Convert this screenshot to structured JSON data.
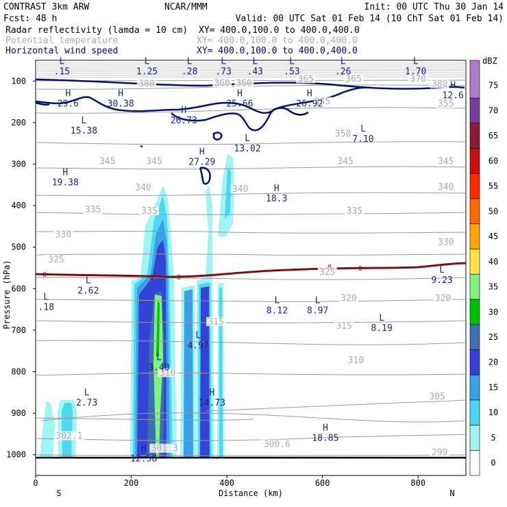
{
  "header": {
    "model": "CONTRAST  3km ARW",
    "center": "NCAR/MMM",
    "init": "Init: 00 UTC Thu 30 Jan 14",
    "fcst": "Fcst:   48 h",
    "valid": "Valid: 00 UTC Sat 01 Feb 14 (10 ChT Sat 01 Feb 14)",
    "fields": [
      {
        "name": "Radar reflectivity (lamda = 10 cm)",
        "xy": "XY= 400.0,100.0 to 400.0,400.0",
        "color": "#000000"
      },
      {
        "name": "Potential temperature",
        "xy": "XY= 400.0,100.0 to 400.0,400.0",
        "color": "#aaaaaa"
      },
      {
        "name": "Horizontal wind speed",
        "xy": "XY= 400.0,100.0 to 400.0,400.0",
        "color": "#000080"
      }
    ]
  },
  "chart_data": {
    "type": "cross-section",
    "xlabel": "Distance (km)",
    "ylabel": "Pressure (hPa)",
    "x_ticks": [
      "0",
      "200",
      "400",
      "600",
      "800"
    ],
    "x_tick_values": [
      0,
      200,
      400,
      600,
      800
    ],
    "xlim": [
      0,
      900
    ],
    "y_ticks": [
      "100",
      "200",
      "300",
      "400",
      "500",
      "600",
      "700",
      "800",
      "900",
      "1000"
    ],
    "y_tick_values": [
      100,
      200,
      300,
      400,
      500,
      600,
      700,
      800,
      900,
      1000
    ],
    "ylim": [
      50,
      1050
    ],
    "end_labels": {
      "left": "S",
      "right": "N"
    },
    "colorbar": {
      "unit": "dBZ",
      "levels": [
        "0",
        "5",
        "10",
        "15",
        "20",
        "25",
        "30",
        "35",
        "40",
        "45",
        "50",
        "55",
        "60",
        "65",
        "70",
        "75"
      ],
      "colors": [
        "#ffffff",
        "#9ff4f4",
        "#4fd6f0",
        "#3ba0e8",
        "#3344d6",
        "#3c6fb0",
        "#00c000",
        "#7ff27f",
        "#ffe14a",
        "#ffa500",
        "#ff6a00",
        "#ff2a00",
        "#c81010",
        "#8b1c3a",
        "#7a3a9a",
        "#b27ac6"
      ]
    },
    "theta_contours": [
      {
        "label": "300.6",
        "x": 505,
        "p": 980
      },
      {
        "label": "299",
        "x": 845,
        "p": 1000
      },
      {
        "label": "302.1",
        "x": 70,
        "p": 960
      },
      {
        "label": "301.3",
        "x": 270,
        "p": 990
      },
      {
        "label": "305",
        "x": 840,
        "p": 865
      },
      {
        "label": "310",
        "x": 670,
        "p": 778
      },
      {
        "label": "310",
        "x": 276,
        "p": 808
      },
      {
        "label": "315",
        "x": 645,
        "p": 695
      },
      {
        "label": "315",
        "x": 377,
        "p": 685
      },
      {
        "label": "320",
        "x": 655,
        "p": 628
      },
      {
        "label": "320",
        "x": 852,
        "p": 628
      },
      {
        "label": "325",
        "x": 43,
        "p": 535
      },
      {
        "label": "325",
        "x": 610,
        "p": 565
      },
      {
        "label": "330",
        "x": 58,
        "p": 475
      },
      {
        "label": "330",
        "x": 858,
        "p": 493
      },
      {
        "label": "335",
        "x": 120,
        "p": 415
      },
      {
        "label": "335",
        "x": 238,
        "p": 418
      },
      {
        "label": "335",
        "x": 667,
        "p": 418
      },
      {
        "label": "340",
        "x": 225,
        "p": 362
      },
      {
        "label": "340",
        "x": 428,
        "p": 365
      },
      {
        "label": "340",
        "x": 858,
        "p": 360
      },
      {
        "label": "345",
        "x": 150,
        "p": 298
      },
      {
        "label": "345",
        "x": 248,
        "p": 298
      },
      {
        "label": "345",
        "x": 648,
        "p": 298
      },
      {
        "label": "345",
        "x": 858,
        "p": 298
      },
      {
        "label": "350",
        "x": 643,
        "p": 232
      },
      {
        "label": "355",
        "x": 600,
        "p": 155
      },
      {
        "label": "355",
        "x": 858,
        "p": 160
      },
      {
        "label": "360",
        "x": 390,
        "p": 110
      },
      {
        "label": "360",
        "x": 436,
        "p": 110
      },
      {
        "label": "365",
        "x": 565,
        "p": 100
      },
      {
        "label": "365",
        "x": 665,
        "p": 100
      },
      {
        "label": "370",
        "x": 800,
        "p": 100
      },
      {
        "label": "380",
        "x": 232,
        "p": 112
      },
      {
        "label": "380",
        "x": 845,
        "p": 112
      }
    ],
    "wind_extrema": [
      {
        "type": "L",
        "value": ".15",
        "x": 55,
        "p": 72
      },
      {
        "type": "L",
        "value": "1.25",
        "x": 233,
        "p": 72
      },
      {
        "type": "L",
        "value": ".28",
        "x": 322,
        "p": 72
      },
      {
        "type": "L",
        "value": ".73",
        "x": 393,
        "p": 72
      },
      {
        "type": "L",
        "value": ".43",
        "x": 459,
        "p": 72
      },
      {
        "type": "L",
        "value": ".53",
        "x": 536,
        "p": 72
      },
      {
        "type": "L",
        "value": ".26",
        "x": 643,
        "p": 72
      },
      {
        "type": "L",
        "value": "1.70",
        "x": 795,
        "p": 72
      },
      {
        "type": "H",
        "value": "29.6",
        "x": 68,
        "p": 150
      },
      {
        "type": "H",
        "value": "30.38",
        "x": 178,
        "p": 150
      },
      {
        "type": "H",
        "value": "25.66",
        "x": 427,
        "p": 150
      },
      {
        "type": "H",
        "value": "26.92",
        "x": 573,
        "p": 150
      },
      {
        "type": "H",
        "value": "12.6",
        "x": 873,
        "p": 130
      },
      {
        "type": "H",
        "value": "26.73",
        "x": 310,
        "p": 190
      },
      {
        "type": "L",
        "value": "15.38",
        "x": 101,
        "p": 215
      },
      {
        "type": "L",
        "value": "7.10",
        "x": 685,
        "p": 235
      },
      {
        "type": "L",
        "value": "13.02",
        "x": 443,
        "p": 258
      },
      {
        "type": "H",
        "value": "27.29",
        "x": 348,
        "p": 290
      },
      {
        "type": "H",
        "value": "19.38",
        "x": 62,
        "p": 340
      },
      {
        "type": "H",
        "value": "18.3",
        "x": 504,
        "p": 378
      },
      {
        "type": "L",
        "value": "9.23",
        "x": 850,
        "p": 575
      },
      {
        "type": "L",
        "value": "2.62",
        "x": 110,
        "p": 600
      },
      {
        "type": "L",
        "value": ".18",
        "x": 22,
        "p": 640
      },
      {
        "type": "L",
        "value": "8.12",
        "x": 505,
        "p": 648
      },
      {
        "type": "L",
        "value": "8.97",
        "x": 590,
        "p": 648
      },
      {
        "type": "L",
        "value": "8.19",
        "x": 724,
        "p": 690
      },
      {
        "type": "L",
        "value": "4.97",
        "x": 340,
        "p": 732
      },
      {
        "type": "L",
        "value": "3.40",
        "x": 258,
        "p": 785
      },
      {
        "type": "L",
        "value": "2.73",
        "x": 107,
        "p": 870
      },
      {
        "type": "H",
        "value": "14.73",
        "x": 369,
        "p": 870
      },
      {
        "type": "H",
        "value": "18.85",
        "x": 606,
        "p": 955
      },
      {
        "type": "H",
        "value": "12.58",
        "x": 226,
        "p": 1005
      }
    ],
    "freezing_level_label": "0"
  }
}
